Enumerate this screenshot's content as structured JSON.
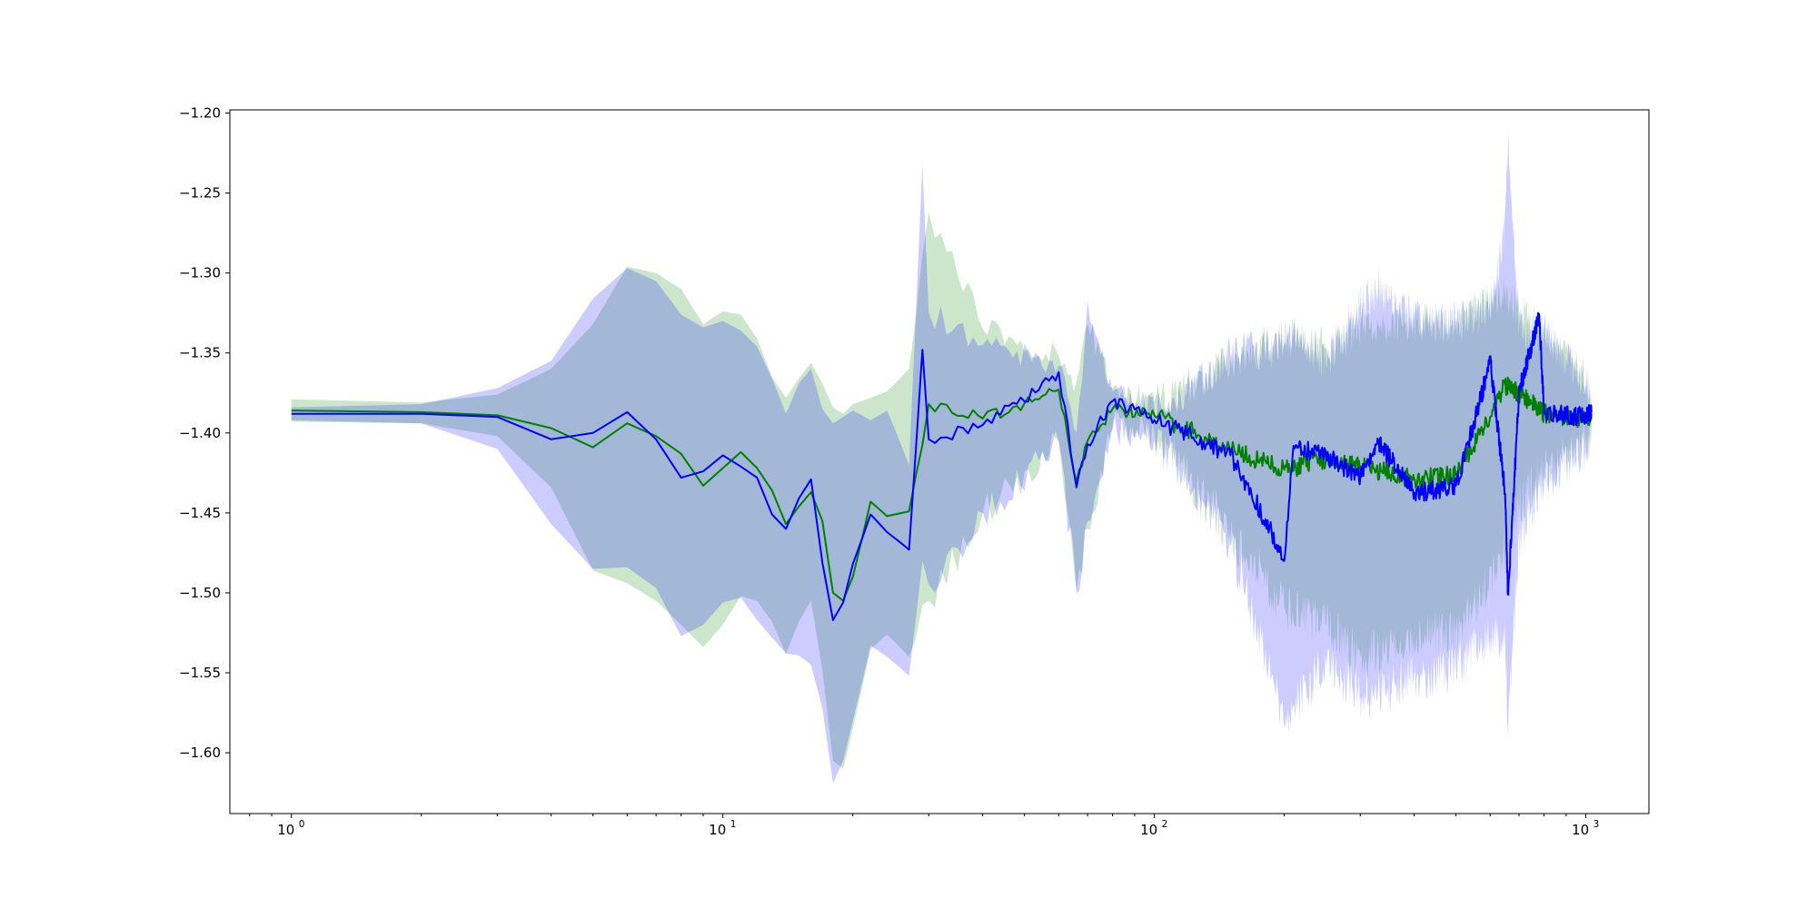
{
  "chart_data": {
    "type": "line",
    "title": "",
    "xlabel": "",
    "ylabel": "",
    "x_scale": "log",
    "xlim": [
      0.72,
      1400
    ],
    "ylim": [
      -1.638,
      -1.198
    ],
    "grid": false,
    "x_ticks": [
      {
        "value": 1,
        "base": "10",
        "exp": "0"
      },
      {
        "value": 10,
        "base": "10",
        "exp": "1"
      },
      {
        "value": 100,
        "base": "10",
        "exp": "2"
      },
      {
        "value": 1000,
        "base": "10",
        "exp": "3"
      }
    ],
    "y_ticks": [
      {
        "value": -1.2,
        "label": "−1.20"
      },
      {
        "value": -1.25,
        "label": "−1.25"
      },
      {
        "value": -1.3,
        "label": "−1.30"
      },
      {
        "value": -1.35,
        "label": "−1.35"
      },
      {
        "value": -1.4,
        "label": "−1.40"
      },
      {
        "value": -1.45,
        "label": "−1.45"
      },
      {
        "value": -1.5,
        "label": "−1.50"
      },
      {
        "value": -1.55,
        "label": "−1.55"
      },
      {
        "value": -1.6,
        "label": "−1.60"
      }
    ],
    "series": [
      {
        "color": "#008000",
        "band_color": "#008000",
        "band_opacity": 0.2,
        "x": [
          1,
          2,
          3,
          4,
          5,
          6,
          7,
          8,
          9,
          10,
          11,
          12,
          13,
          14,
          15,
          16,
          17,
          18,
          19,
          20,
          22,
          24,
          27,
          30,
          40,
          60,
          66,
          70,
          80,
          100,
          150,
          200,
          250,
          300,
          400,
          500,
          650,
          700,
          800,
          1000,
          1030
        ],
        "mean": [
          -1.386,
          -1.387,
          -1.389,
          -1.397,
          -1.409,
          -1.394,
          -1.402,
          -1.413,
          -1.433,
          -1.422,
          -1.412,
          -1.422,
          -1.436,
          -1.457,
          -1.446,
          -1.437,
          -1.455,
          -1.5,
          -1.505,
          -1.49,
          -1.443,
          -1.452,
          -1.449,
          -1.382,
          -1.391,
          -1.373,
          -1.43,
          -1.405,
          -1.385,
          -1.389,
          -1.411,
          -1.423,
          -1.416,
          -1.421,
          -1.429,
          -1.426,
          -1.37,
          -1.375,
          -1.388,
          -1.391,
          -1.388
        ],
        "upper": [
          -1.379,
          -1.381,
          -1.376,
          -1.36,
          -1.332,
          -1.296,
          -1.3,
          -1.31,
          -1.332,
          -1.324,
          -1.326,
          -1.341,
          -1.365,
          -1.378,
          -1.366,
          -1.356,
          -1.369,
          -1.384,
          -1.388,
          -1.382,
          -1.378,
          -1.374,
          -1.36,
          -1.262,
          -1.335,
          -1.352,
          -1.368,
          -1.332,
          -1.372,
          -1.38,
          -1.355,
          -1.34,
          -1.347,
          -1.333,
          -1.33,
          -1.333,
          -1.31,
          -1.325,
          -1.335,
          -1.37,
          -1.38
        ],
        "lower": [
          -1.393,
          -1.394,
          -1.402,
          -1.434,
          -1.486,
          -1.494,
          -1.505,
          -1.52,
          -1.534,
          -1.52,
          -1.502,
          -1.505,
          -1.518,
          -1.538,
          -1.518,
          -1.505,
          -1.548,
          -1.605,
          -1.61,
          -1.585,
          -1.535,
          -1.526,
          -1.54,
          -1.505,
          -1.45,
          -1.405,
          -1.498,
          -1.46,
          -1.395,
          -1.4,
          -1.465,
          -1.51,
          -1.52,
          -1.54,
          -1.53,
          -1.525,
          -1.475,
          -1.445,
          -1.425,
          -1.408,
          -1.398
        ]
      },
      {
        "color": "#0000ff",
        "band_color": "#0000ff",
        "band_opacity": 0.2,
        "x": [
          1,
          2,
          3,
          4,
          5,
          6,
          7,
          8,
          9,
          10,
          11,
          12,
          13,
          14,
          15,
          16,
          17,
          18,
          19,
          20,
          22,
          24,
          27,
          29,
          30,
          40,
          60,
          66,
          70,
          80,
          100,
          150,
          200,
          210,
          250,
          300,
          330,
          400,
          500,
          600,
          650,
          660,
          700,
          780,
          800,
          1000,
          1030
        ],
        "mean": [
          -1.388,
          -1.388,
          -1.39,
          -1.404,
          -1.4,
          -1.387,
          -1.404,
          -1.428,
          -1.424,
          -1.414,
          -1.421,
          -1.428,
          -1.451,
          -1.46,
          -1.441,
          -1.429,
          -1.481,
          -1.517,
          -1.506,
          -1.482,
          -1.451,
          -1.462,
          -1.473,
          -1.348,
          -1.404,
          -1.395,
          -1.362,
          -1.434,
          -1.407,
          -1.38,
          -1.392,
          -1.414,
          -1.48,
          -1.408,
          -1.415,
          -1.428,
          -1.406,
          -1.438,
          -1.433,
          -1.355,
          -1.438,
          -1.501,
          -1.374,
          -1.327,
          -1.388,
          -1.39,
          -1.387
        ],
        "upper": [
          -1.384,
          -1.382,
          -1.372,
          -1.355,
          -1.316,
          -1.297,
          -1.305,
          -1.326,
          -1.334,
          -1.33,
          -1.336,
          -1.346,
          -1.366,
          -1.388,
          -1.369,
          -1.36,
          -1.385,
          -1.394,
          -1.39,
          -1.386,
          -1.392,
          -1.386,
          -1.42,
          -1.232,
          -1.325,
          -1.345,
          -1.358,
          -1.4,
          -1.317,
          -1.374,
          -1.385,
          -1.35,
          -1.345,
          -1.336,
          -1.356,
          -1.319,
          -1.31,
          -1.33,
          -1.33,
          -1.323,
          -1.27,
          -1.217,
          -1.335,
          -1.34,
          -1.338,
          -1.37,
          -1.38
        ],
        "lower": [
          -1.392,
          -1.394,
          -1.41,
          -1.457,
          -1.485,
          -1.484,
          -1.497,
          -1.527,
          -1.52,
          -1.506,
          -1.503,
          -1.517,
          -1.528,
          -1.538,
          -1.539,
          -1.545,
          -1.572,
          -1.619,
          -1.605,
          -1.58,
          -1.533,
          -1.54,
          -1.552,
          -1.48,
          -1.495,
          -1.45,
          -1.405,
          -1.5,
          -1.455,
          -1.398,
          -1.404,
          -1.47,
          -1.583,
          -1.57,
          -1.545,
          -1.565,
          -1.56,
          -1.555,
          -1.545,
          -1.528,
          -1.53,
          -1.583,
          -1.467,
          -1.434,
          -1.43,
          -1.41,
          -1.4
        ]
      }
    ]
  }
}
